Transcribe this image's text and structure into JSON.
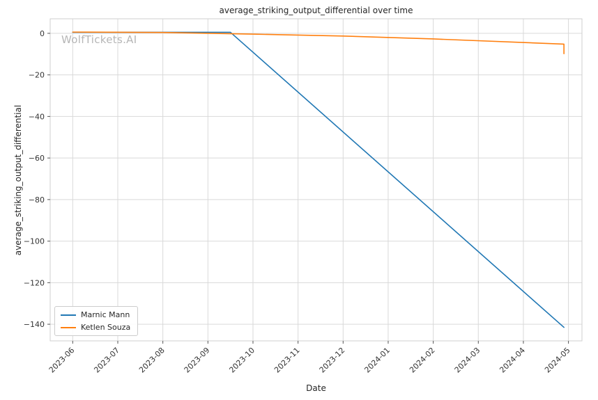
{
  "watermark": "WolfTickets.AI",
  "chart_data": {
    "type": "line",
    "title": "average_striking_output_differential over time",
    "xlabel": "Date",
    "ylabel": "average_striking_output_differential",
    "x_tick_labels": [
      "2023-06",
      "2023-07",
      "2023-08",
      "2023-09",
      "2023-10",
      "2023-11",
      "2023-12",
      "2024-01",
      "2024-02",
      "2024-03",
      "2024-04",
      "2024-05"
    ],
    "x_tick_positions": [
      0,
      1,
      2,
      3,
      4,
      5,
      6,
      7,
      8,
      9,
      10,
      11
    ],
    "y_ticks": [
      0,
      -20,
      -40,
      -60,
      -80,
      -100,
      -120,
      -140
    ],
    "xlim": [
      -0.5,
      11.3
    ],
    "ylim": [
      -148,
      7
    ],
    "grid": true,
    "legend_position": "lower left",
    "series": [
      {
        "name": "Marnic Mann",
        "color": "#1f77b4",
        "points": [
          [
            0,
            0.5
          ],
          [
            3.5,
            0.5
          ],
          [
            10.9,
            -141.5
          ]
        ]
      },
      {
        "name": "Ketlen Souza",
        "color": "#ff7f0e",
        "points": [
          [
            0,
            0.6
          ],
          [
            2,
            0.4
          ],
          [
            4,
            -0.4
          ],
          [
            6,
            -1.3
          ],
          [
            8,
            -2.7
          ],
          [
            10.9,
            -5.2
          ],
          [
            10.9,
            -9.8
          ]
        ]
      }
    ],
    "colors": {
      "grid": "#d9d9d9",
      "spine": "#cfcfcf",
      "tick": "#555555",
      "text": "#333333"
    }
  }
}
